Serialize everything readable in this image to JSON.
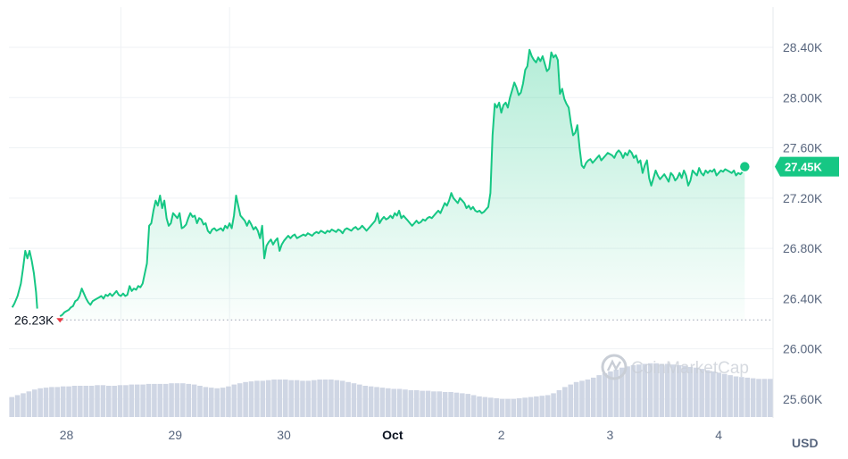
{
  "chart_data": {
    "type": "area",
    "currency_label": "USD",
    "brand_watermark": "CoinMarketCap",
    "y_ticks": [
      "25.60K",
      "26.00K",
      "26.40K",
      "26.80K",
      "27.20K",
      "27.60K",
      "28.00K",
      "28.40K"
    ],
    "y_tick_values": [
      25600,
      26000,
      26400,
      26800,
      27200,
      27600,
      28000,
      28400
    ],
    "x_ticks": [
      {
        "label": "28",
        "t": 0.5,
        "bold": false
      },
      {
        "label": "29",
        "t": 1.5,
        "bold": false
      },
      {
        "label": "30",
        "t": 2.5,
        "bold": false
      },
      {
        "label": "Oct",
        "t": 3.5,
        "bold": true
      },
      {
        "label": "2",
        "t": 4.5,
        "bold": false
      },
      {
        "label": "3",
        "t": 5.5,
        "bold": false
      },
      {
        "label": "4",
        "t": 6.5,
        "bold": false
      }
    ],
    "x_range": [
      -0.03,
      7.0
    ],
    "y_range": [
      25450,
      28720
    ],
    "current_price_label": "27.45K",
    "current_price": 27450,
    "low_label": "26.23K",
    "low_value": 26230,
    "colors": {
      "line": "#16c784",
      "fill_top": "#16c784",
      "low_marker": "#ea3943",
      "volume": "#cfd6e4",
      "grid": "#eff2f5"
    },
    "price_series": [
      [
        0.0,
        26330
      ],
      [
        0.02,
        26360
      ],
      [
        0.05,
        26420
      ],
      [
        0.08,
        26520
      ],
      [
        0.1,
        26640
      ],
      [
        0.12,
        26780
      ],
      [
        0.14,
        26720
      ],
      [
        0.16,
        26780
      ],
      [
        0.18,
        26700
      ],
      [
        0.2,
        26600
      ],
      [
        0.22,
        26450
      ],
      [
        0.23,
        26320
      ],
      [
        0.44,
        26260
      ],
      [
        0.46,
        26270
      ],
      [
        0.48,
        26290
      ],
      [
        0.5,
        26300
      ],
      [
        0.52,
        26310
      ],
      [
        0.54,
        26330
      ],
      [
        0.56,
        26340
      ],
      [
        0.58,
        26380
      ],
      [
        0.6,
        26390
      ],
      [
        0.62,
        26420
      ],
      [
        0.64,
        26480
      ],
      [
        0.66,
        26440
      ],
      [
        0.68,
        26400
      ],
      [
        0.7,
        26370
      ],
      [
        0.72,
        26350
      ],
      [
        0.74,
        26380
      ],
      [
        0.76,
        26390
      ],
      [
        0.78,
        26400
      ],
      [
        0.8,
        26410
      ],
      [
        0.82,
        26420
      ],
      [
        0.84,
        26400
      ],
      [
        0.86,
        26430
      ],
      [
        0.88,
        26420
      ],
      [
        0.9,
        26440
      ],
      [
        0.92,
        26420
      ],
      [
        0.94,
        26440
      ],
      [
        0.96,
        26460
      ],
      [
        0.98,
        26430
      ],
      [
        1.0,
        26420
      ],
      [
        1.02,
        26440
      ],
      [
        1.04,
        26420
      ],
      [
        1.06,
        26430
      ],
      [
        1.08,
        26500
      ],
      [
        1.1,
        26460
      ],
      [
        1.12,
        26480
      ],
      [
        1.14,
        26470
      ],
      [
        1.16,
        26500
      ],
      [
        1.18,
        26490
      ],
      [
        1.2,
        26520
      ],
      [
        1.22,
        26600
      ],
      [
        1.24,
        26680
      ],
      [
        1.26,
        26980
      ],
      [
        1.28,
        27000
      ],
      [
        1.3,
        27100
      ],
      [
        1.32,
        27180
      ],
      [
        1.34,
        27140
      ],
      [
        1.36,
        27220
      ],
      [
        1.38,
        27120
      ],
      [
        1.4,
        27180
      ],
      [
        1.42,
        27040
      ],
      [
        1.44,
        26980
      ],
      [
        1.46,
        27000
      ],
      [
        1.48,
        27080
      ],
      [
        1.5,
        27060
      ],
      [
        1.52,
        27040
      ],
      [
        1.54,
        27080
      ],
      [
        1.56,
        26960
      ],
      [
        1.58,
        26970
      ],
      [
        1.6,
        26990
      ],
      [
        1.62,
        27040
      ],
      [
        1.64,
        27080
      ],
      [
        1.66,
        27050
      ],
      [
        1.68,
        27060
      ],
      [
        1.7,
        27000
      ],
      [
        1.72,
        27040
      ],
      [
        1.74,
        27030
      ],
      [
        1.76,
        26990
      ],
      [
        1.78,
        27000
      ],
      [
        1.8,
        26940
      ],
      [
        1.82,
        26920
      ],
      [
        1.84,
        26950
      ],
      [
        1.86,
        26960
      ],
      [
        1.88,
        26940
      ],
      [
        1.9,
        26950
      ],
      [
        1.92,
        26960
      ],
      [
        1.94,
        26940
      ],
      [
        1.96,
        26980
      ],
      [
        1.98,
        26960
      ],
      [
        2.0,
        27000
      ],
      [
        2.02,
        26960
      ],
      [
        2.04,
        27060
      ],
      [
        2.06,
        27220
      ],
      [
        2.08,
        27140
      ],
      [
        2.1,
        27060
      ],
      [
        2.12,
        27040
      ],
      [
        2.14,
        27020
      ],
      [
        2.16,
        26980
      ],
      [
        2.18,
        27020
      ],
      [
        2.2,
        26990
      ],
      [
        2.22,
        26950
      ],
      [
        2.24,
        26970
      ],
      [
        2.26,
        26940
      ],
      [
        2.28,
        26880
      ],
      [
        2.3,
        26980
      ],
      [
        2.32,
        26720
      ],
      [
        2.34,
        26820
      ],
      [
        2.36,
        26850
      ],
      [
        2.38,
        26870
      ],
      [
        2.4,
        26830
      ],
      [
        2.42,
        26860
      ],
      [
        2.44,
        26880
      ],
      [
        2.46,
        26780
      ],
      [
        2.48,
        26830
      ],
      [
        2.5,
        26860
      ],
      [
        2.52,
        26880
      ],
      [
        2.54,
        26900
      ],
      [
        2.56,
        26880
      ],
      [
        2.58,
        26900
      ],
      [
        2.6,
        26910
      ],
      [
        2.62,
        26880
      ],
      [
        2.64,
        26890
      ],
      [
        2.66,
        26900
      ],
      [
        2.68,
        26910
      ],
      [
        2.7,
        26900
      ],
      [
        2.72,
        26920
      ],
      [
        2.74,
        26910
      ],
      [
        2.76,
        26900
      ],
      [
        2.78,
        26920
      ],
      [
        2.8,
        26930
      ],
      [
        2.82,
        26920
      ],
      [
        2.84,
        26940
      ],
      [
        2.86,
        26930
      ],
      [
        2.88,
        26920
      ],
      [
        2.9,
        26940
      ],
      [
        2.92,
        26930
      ],
      [
        2.94,
        26950
      ],
      [
        2.96,
        26940
      ],
      [
        2.98,
        26930
      ],
      [
        3.0,
        26950
      ],
      [
        3.02,
        26940
      ],
      [
        3.04,
        26920
      ],
      [
        3.06,
        26950
      ],
      [
        3.08,
        26960
      ],
      [
        3.1,
        26950
      ],
      [
        3.12,
        26940
      ],
      [
        3.14,
        26960
      ],
      [
        3.16,
        26970
      ],
      [
        3.18,
        26950
      ],
      [
        3.2,
        26960
      ],
      [
        3.22,
        26980
      ],
      [
        3.24,
        26960
      ],
      [
        3.26,
        26940
      ],
      [
        3.28,
        26960
      ],
      [
        3.3,
        26980
      ],
      [
        3.32,
        27000
      ],
      [
        3.34,
        27020
      ],
      [
        3.36,
        27080
      ],
      [
        3.38,
        27000
      ],
      [
        3.4,
        27030
      ],
      [
        3.42,
        27050
      ],
      [
        3.44,
        27030
      ],
      [
        3.46,
        27040
      ],
      [
        3.48,
        27060
      ],
      [
        3.5,
        27040
      ],
      [
        3.52,
        27080
      ],
      [
        3.54,
        27060
      ],
      [
        3.56,
        27100
      ],
      [
        3.58,
        27040
      ],
      [
        3.6,
        27060
      ],
      [
        3.62,
        27040
      ],
      [
        3.64,
        27020
      ],
      [
        3.66,
        27000
      ],
      [
        3.68,
        26980
      ],
      [
        3.7,
        27000
      ],
      [
        3.72,
        27020
      ],
      [
        3.74,
        27000
      ],
      [
        3.76,
        27010
      ],
      [
        3.78,
        27030
      ],
      [
        3.8,
        27020
      ],
      [
        3.82,
        27040
      ],
      [
        3.84,
        27050
      ],
      [
        3.86,
        27040
      ],
      [
        3.88,
        27060
      ],
      [
        3.9,
        27080
      ],
      [
        3.92,
        27100
      ],
      [
        3.94,
        27080
      ],
      [
        3.96,
        27120
      ],
      [
        3.98,
        27160
      ],
      [
        4.0,
        27140
      ],
      [
        4.02,
        27180
      ],
      [
        4.04,
        27240
      ],
      [
        4.06,
        27200
      ],
      [
        4.08,
        27180
      ],
      [
        4.1,
        27160
      ],
      [
        4.12,
        27200
      ],
      [
        4.14,
        27180
      ],
      [
        4.16,
        27160
      ],
      [
        4.18,
        27120
      ],
      [
        4.2,
        27140
      ],
      [
        4.22,
        27110
      ],
      [
        4.24,
        27130
      ],
      [
        4.26,
        27100
      ],
      [
        4.28,
        27090
      ],
      [
        4.3,
        27100
      ],
      [
        4.32,
        27080
      ],
      [
        4.34,
        27090
      ],
      [
        4.36,
        27110
      ],
      [
        4.38,
        27130
      ],
      [
        4.4,
        27240
      ],
      [
        4.42,
        27700
      ],
      [
        4.44,
        27950
      ],
      [
        4.46,
        27920
      ],
      [
        4.48,
        27960
      ],
      [
        4.5,
        27880
      ],
      [
        4.52,
        27940
      ],
      [
        4.54,
        27960
      ],
      [
        4.56,
        27920
      ],
      [
        4.58,
        28000
      ],
      [
        4.6,
        28060
      ],
      [
        4.62,
        28120
      ],
      [
        4.64,
        28080
      ],
      [
        4.66,
        28020
      ],
      [
        4.68,
        28040
      ],
      [
        4.7,
        28110
      ],
      [
        4.72,
        28220
      ],
      [
        4.74,
        28250
      ],
      [
        4.76,
        28380
      ],
      [
        4.78,
        28330
      ],
      [
        4.8,
        28300
      ],
      [
        4.82,
        28280
      ],
      [
        4.84,
        28320
      ],
      [
        4.86,
        28290
      ],
      [
        4.88,
        28330
      ],
      [
        4.9,
        28270
      ],
      [
        4.92,
        28210
      ],
      [
        4.94,
        28230
      ],
      [
        4.96,
        28360
      ],
      [
        4.98,
        28320
      ],
      [
        5.0,
        28340
      ],
      [
        5.02,
        28300
      ],
      [
        5.04,
        28030
      ],
      [
        5.06,
        28070
      ],
      [
        5.08,
        27990
      ],
      [
        5.1,
        27950
      ],
      [
        5.12,
        27920
      ],
      [
        5.14,
        27800
      ],
      [
        5.16,
        27700
      ],
      [
        5.18,
        27720
      ],
      [
        5.2,
        27780
      ],
      [
        5.22,
        27600
      ],
      [
        5.24,
        27460
      ],
      [
        5.26,
        27440
      ],
      [
        5.28,
        27480
      ],
      [
        5.3,
        27500
      ],
      [
        5.32,
        27510
      ],
      [
        5.34,
        27480
      ],
      [
        5.36,
        27500
      ],
      [
        5.38,
        27520
      ],
      [
        5.4,
        27540
      ],
      [
        5.42,
        27500
      ],
      [
        5.44,
        27520
      ],
      [
        5.46,
        27540
      ],
      [
        5.48,
        27560
      ],
      [
        5.5,
        27550
      ],
      [
        5.52,
        27540
      ],
      [
        5.54,
        27520
      ],
      [
        5.56,
        27560
      ],
      [
        5.58,
        27580
      ],
      [
        5.6,
        27560
      ],
      [
        5.62,
        27520
      ],
      [
        5.64,
        27560
      ],
      [
        5.66,
        27540
      ],
      [
        5.68,
        27580
      ],
      [
        5.7,
        27560
      ],
      [
        5.72,
        27520
      ],
      [
        5.74,
        27540
      ],
      [
        5.76,
        27480
      ],
      [
        5.78,
        27500
      ],
      [
        5.8,
        27400
      ],
      [
        5.82,
        27460
      ],
      [
        5.84,
        27500
      ],
      [
        5.86,
        27360
      ],
      [
        5.88,
        27300
      ],
      [
        5.9,
        27360
      ],
      [
        5.92,
        27420
      ],
      [
        5.94,
        27380
      ],
      [
        5.96,
        27350
      ],
      [
        5.98,
        27370
      ],
      [
        6.0,
        27390
      ],
      [
        6.02,
        27360
      ],
      [
        6.04,
        27330
      ],
      [
        6.06,
        27400
      ],
      [
        6.08,
        27380
      ],
      [
        6.1,
        27340
      ],
      [
        6.12,
        27360
      ],
      [
        6.14,
        27400
      ],
      [
        6.16,
        27360
      ],
      [
        6.18,
        27420
      ],
      [
        6.2,
        27380
      ],
      [
        6.22,
        27300
      ],
      [
        6.24,
        27340
      ],
      [
        6.26,
        27420
      ],
      [
        6.28,
        27400
      ],
      [
        6.3,
        27380
      ],
      [
        6.32,
        27440
      ],
      [
        6.34,
        27400
      ],
      [
        6.36,
        27380
      ],
      [
        6.38,
        27420
      ],
      [
        6.4,
        27400
      ],
      [
        6.42,
        27420
      ],
      [
        6.44,
        27410
      ],
      [
        6.46,
        27430
      ],
      [
        6.48,
        27380
      ],
      [
        6.5,
        27400
      ],
      [
        6.52,
        27420
      ],
      [
        6.54,
        27410
      ],
      [
        6.56,
        27430
      ],
      [
        6.58,
        27420
      ],
      [
        6.6,
        27410
      ],
      [
        6.62,
        27400
      ],
      [
        6.64,
        27420
      ],
      [
        6.66,
        27380
      ],
      [
        6.68,
        27400
      ],
      [
        6.7,
        27390
      ],
      [
        6.72,
        27410
      ],
      [
        6.74,
        27450
      ]
    ],
    "volume_series": [
      0.32,
      0.35,
      0.38,
      0.41,
      0.44,
      0.46,
      0.47,
      0.48,
      0.48,
      0.49,
      0.49,
      0.5,
      0.5,
      0.5,
      0.5,
      0.51,
      0.51,
      0.5,
      0.5,
      0.51,
      0.51,
      0.52,
      0.52,
      0.52,
      0.53,
      0.53,
      0.53,
      0.53,
      0.54,
      0.54,
      0.54,
      0.53,
      0.52,
      0.5,
      0.48,
      0.47,
      0.46,
      0.47,
      0.49,
      0.52,
      0.54,
      0.56,
      0.57,
      0.58,
      0.58,
      0.59,
      0.6,
      0.6,
      0.6,
      0.59,
      0.59,
      0.58,
      0.58,
      0.59,
      0.6,
      0.6,
      0.6,
      0.59,
      0.58,
      0.56,
      0.54,
      0.52,
      0.5,
      0.49,
      0.48,
      0.47,
      0.46,
      0.45,
      0.45,
      0.44,
      0.43,
      0.43,
      0.42,
      0.42,
      0.41,
      0.41,
      0.4,
      0.4,
      0.39,
      0.38,
      0.37,
      0.35,
      0.33,
      0.32,
      0.31,
      0.3,
      0.29,
      0.29,
      0.29,
      0.3,
      0.31,
      0.32,
      0.33,
      0.34,
      0.35,
      0.38,
      0.43,
      0.48,
      0.52,
      0.56,
      0.58,
      0.6,
      0.63,
      0.67,
      0.7,
      0.73,
      0.76,
      0.79,
      0.81,
      0.83,
      0.84,
      0.85,
      0.86,
      0.86,
      0.85,
      0.85,
      0.84,
      0.83,
      0.82,
      0.8,
      0.79,
      0.77,
      0.75,
      0.73,
      0.71,
      0.69,
      0.67,
      0.65,
      0.64,
      0.63,
      0.62,
      0.61,
      0.61,
      0.61
    ]
  }
}
